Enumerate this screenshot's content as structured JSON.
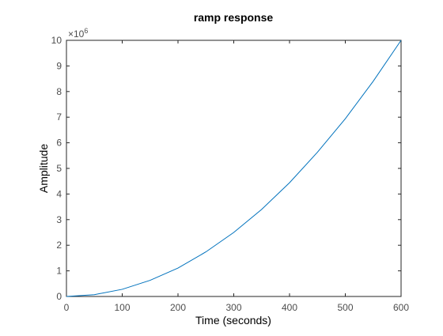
{
  "chart_data": {
    "type": "line",
    "title": "ramp response",
    "xlabel": "Time (seconds)",
    "ylabel": "Amplitude",
    "xlim": [
      0,
      600
    ],
    "ylim": [
      0,
      10
    ],
    "x_ticks": [
      0,
      100,
      200,
      300,
      400,
      500,
      600
    ],
    "y_ticks": [
      0,
      1,
      2,
      3,
      4,
      5,
      6,
      7,
      8,
      9,
      10
    ],
    "y_exponent_base": "×10",
    "y_exponent_power": "6",
    "grid": false,
    "series": [
      {
        "color": "#0072bd",
        "x": [
          0,
          50,
          100,
          150,
          200,
          250,
          300,
          350,
          400,
          450,
          500,
          550,
          600
        ],
        "y": [
          0.0,
          0.07,
          0.28,
          0.63,
          1.11,
          1.74,
          2.5,
          3.4,
          4.44,
          5.63,
          6.94,
          8.4,
          10.0
        ]
      }
    ]
  }
}
